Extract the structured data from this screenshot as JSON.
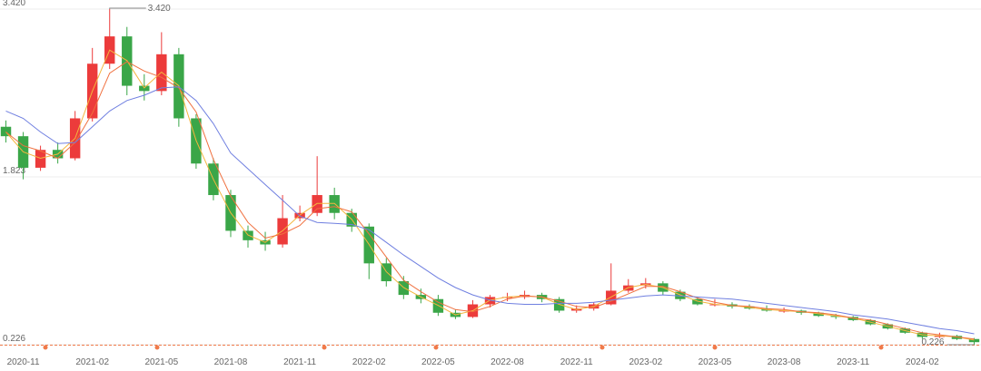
{
  "chart_data": {
    "type": "candlestick",
    "categories": [
      null,
      "2020-11",
      null,
      null,
      null,
      "2021-02",
      null,
      null,
      null,
      "2021-05",
      null,
      null,
      null,
      "2021-08",
      null,
      null,
      null,
      "2021-11",
      null,
      null,
      null,
      "2022-02",
      null,
      null,
      null,
      "2022-05",
      null,
      null,
      null,
      "2022-08",
      null,
      null,
      null,
      "2022-11",
      null,
      null,
      null,
      "2023-02",
      null,
      null,
      null,
      "2023-05",
      null,
      null,
      null,
      "2023-08",
      null,
      null,
      null,
      "2023-11",
      null,
      null,
      null,
      "2024-02",
      null,
      null,
      null
    ],
    "open": [
      2.3,
      2.21,
      1.91,
      2.08,
      2.0,
      2.38,
      2.9,
      3.16,
      2.69,
      2.64,
      2.99,
      2.38,
      1.95,
      1.65,
      1.31,
      1.22,
      1.18,
      1.43,
      1.48,
      1.65,
      1.48,
      1.35,
      1.0,
      0.83,
      0.7,
      0.66,
      0.53,
      0.49,
      0.61,
      0.68,
      0.68,
      0.7,
      0.66,
      0.55,
      0.57,
      0.61,
      0.74,
      0.79,
      0.81,
      0.73,
      0.66,
      0.61,
      0.61,
      0.59,
      0.57,
      0.55,
      0.55,
      0.53,
      0.5,
      0.49,
      0.46,
      0.42,
      0.38,
      0.34,
      0.3,
      0.31,
      0.28
    ],
    "high": [
      2.36,
      2.25,
      2.12,
      2.15,
      2.45,
      3.05,
      3.42,
      3.25,
      2.8,
      3.2,
      3.05,
      2.42,
      2.0,
      1.7,
      1.36,
      1.3,
      1.65,
      1.55,
      2.02,
      1.72,
      1.52,
      1.38,
      1.05,
      0.88,
      0.76,
      0.7,
      0.56,
      0.65,
      0.7,
      0.72,
      0.74,
      0.72,
      0.68,
      0.6,
      0.63,
      1.0,
      0.85,
      0.86,
      0.83,
      0.75,
      0.68,
      0.66,
      0.63,
      0.61,
      0.6,
      0.58,
      0.56,
      0.54,
      0.52,
      0.5,
      0.47,
      0.43,
      0.39,
      0.35,
      0.34,
      0.32,
      0.29
    ],
    "low": [
      2.15,
      1.8,
      1.88,
      1.95,
      1.98,
      2.35,
      2.85,
      2.6,
      2.55,
      2.6,
      2.3,
      1.9,
      1.6,
      1.25,
      1.15,
      1.12,
      1.15,
      1.4,
      1.45,
      1.42,
      1.3,
      0.85,
      0.78,
      0.66,
      0.62,
      0.5,
      0.47,
      0.48,
      0.58,
      0.64,
      0.66,
      0.63,
      0.53,
      0.53,
      0.55,
      0.6,
      0.72,
      0.76,
      0.7,
      0.64,
      0.6,
      0.59,
      0.57,
      0.56,
      0.54,
      0.53,
      0.51,
      0.49,
      0.47,
      0.45,
      0.41,
      0.37,
      0.33,
      0.28,
      0.29,
      0.27,
      0.226
    ],
    "close": [
      2.21,
      1.91,
      2.08,
      2.0,
      2.38,
      2.9,
      3.16,
      2.69,
      2.64,
      2.99,
      2.38,
      1.95,
      1.65,
      1.31,
      1.22,
      1.18,
      1.43,
      1.48,
      1.65,
      1.48,
      1.35,
      1.0,
      0.83,
      0.7,
      0.66,
      0.53,
      0.49,
      0.61,
      0.68,
      0.68,
      0.7,
      0.66,
      0.55,
      0.57,
      0.61,
      0.74,
      0.79,
      0.81,
      0.73,
      0.66,
      0.61,
      0.61,
      0.59,
      0.57,
      0.55,
      0.55,
      0.53,
      0.5,
      0.49,
      0.46,
      0.42,
      0.38,
      0.34,
      0.3,
      0.31,
      0.28,
      0.25
    ],
    "up_color": "#ec3b3b",
    "down_color": "#3aa648",
    "lines": [
      {
        "color": "#f4b63f",
        "values": [
          2.25,
          2.06,
          2.0,
          2.04,
          2.19,
          2.64,
          3.03,
          2.93,
          2.67,
          2.82,
          2.69,
          2.17,
          1.8,
          1.48,
          1.27,
          1.2,
          1.31,
          1.46,
          1.57,
          1.57,
          1.42,
          1.18,
          0.92,
          0.77,
          0.68,
          0.6,
          0.51,
          0.55,
          0.65,
          0.68,
          0.69,
          0.68,
          0.61,
          0.56,
          0.59,
          0.68,
          0.77,
          0.8,
          0.77,
          0.7,
          0.64,
          0.61,
          0.6,
          0.58,
          0.56,
          0.55,
          0.54,
          0.52,
          0.5,
          0.48,
          0.44,
          0.4,
          0.36,
          0.32,
          0.31,
          0.3,
          0.27
        ]
      },
      {
        "color": "#f0703f",
        "values": [
          2.25,
          2.12,
          2.07,
          2.0,
          2.15,
          2.43,
          2.81,
          2.92,
          2.83,
          2.77,
          2.67,
          2.44,
          1.99,
          1.64,
          1.39,
          1.24,
          1.28,
          1.36,
          1.52,
          1.54,
          1.49,
          1.28,
          1.06,
          0.84,
          0.73,
          0.63,
          0.56,
          0.54,
          0.59,
          0.66,
          0.69,
          0.68,
          0.64,
          0.59,
          0.58,
          0.64,
          0.71,
          0.78,
          0.78,
          0.73,
          0.67,
          0.63,
          0.6,
          0.59,
          0.57,
          0.56,
          0.54,
          0.53,
          0.51,
          0.48,
          0.46,
          0.42,
          0.38,
          0.34,
          0.32,
          0.3,
          0.28
        ]
      },
      {
        "color": "#6f7fe0",
        "values": [
          2.45,
          2.38,
          2.25,
          2.14,
          2.15,
          2.3,
          2.45,
          2.55,
          2.6,
          2.67,
          2.68,
          2.55,
          2.33,
          2.05,
          1.9,
          1.75,
          1.6,
          1.45,
          1.39,
          1.38,
          1.37,
          1.32,
          1.2,
          1.08,
          0.97,
          0.86,
          0.77,
          0.7,
          0.65,
          0.62,
          0.61,
          0.61,
          0.62,
          0.62,
          0.63,
          0.65,
          0.67,
          0.69,
          0.7,
          0.69,
          0.68,
          0.67,
          0.66,
          0.64,
          0.62,
          0.6,
          0.58,
          0.56,
          0.54,
          0.51,
          0.49,
          0.47,
          0.44,
          0.41,
          0.38,
          0.36,
          0.33
        ]
      }
    ],
    "ylim": [
      0.226,
      3.42
    ],
    "yticks": [
      0.226,
      1.823,
      {
        "value": 3.42,
        "label": "3.420"
      }
    ],
    "grid": true,
    "max_label": {
      "value": 3.42,
      "label": "3.420"
    },
    "min_label": {
      "value": 0.226,
      "label": "0.226"
    }
  }
}
